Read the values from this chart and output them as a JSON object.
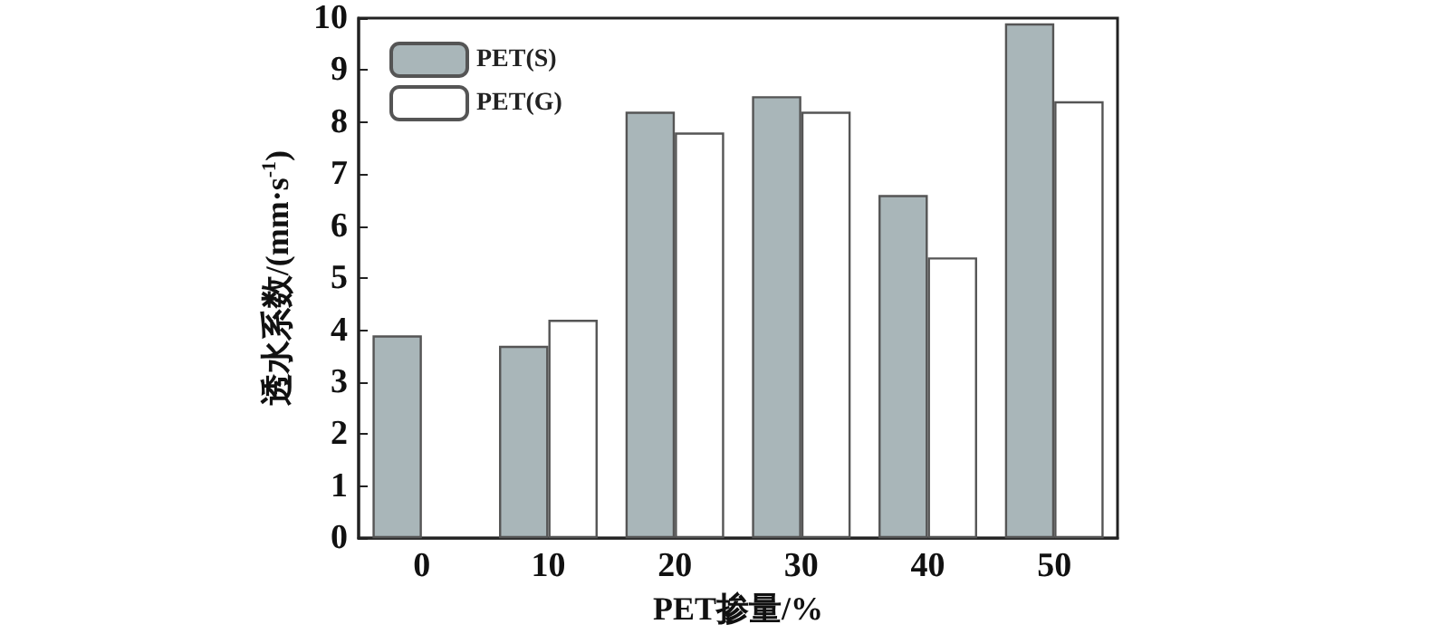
{
  "chart_data": {
    "type": "bar",
    "xlabel": "PET掺量/%",
    "ylabel": "透水系数/(mm·s$^{-1}$)",
    "categories": [
      "0",
      "10",
      "20",
      "30",
      "40",
      "50"
    ],
    "series": [
      {
        "name": "PET(S)",
        "color": "#a9b6b9",
        "values": [
          3.9,
          3.7,
          8.2,
          8.5,
          6.6,
          9.9
        ]
      },
      {
        "name": "PET(G)",
        "color": "#ffffff",
        "values": [
          null,
          4.2,
          7.8,
          8.2,
          5.4,
          8.4
        ]
      }
    ],
    "ylim": [
      0,
      10
    ],
    "yticks": [
      0,
      1,
      2,
      3,
      4,
      5,
      6,
      7,
      8,
      9,
      10
    ],
    "legend": "top left",
    "grid": false
  }
}
